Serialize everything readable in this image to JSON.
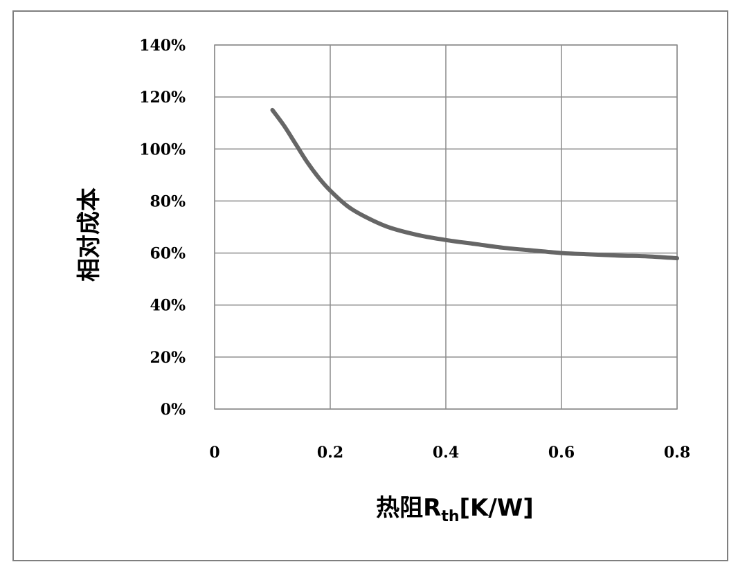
{
  "chart_data": {
    "type": "line",
    "title": "",
    "xlabel": {
      "prefix": "热阻R",
      "subscript": "th",
      "suffix": "[K/W]"
    },
    "ylabel": "相对成本",
    "xlim": [
      0,
      0.8
    ],
    "ylim": [
      0,
      1.4
    ],
    "x_ticks": [
      0,
      0.2,
      0.4,
      0.6,
      0.8
    ],
    "x_tick_labels": [
      "0",
      "0.2",
      "0.4",
      "0.6",
      "0.8"
    ],
    "y_ticks": [
      0,
      0.2,
      0.4,
      0.6,
      0.8,
      1.0,
      1.2,
      1.4
    ],
    "y_tick_labels": [
      "0%",
      "20%",
      "40%",
      "60%",
      "80%",
      "100%",
      "120%",
      "140%"
    ],
    "grid": true,
    "legend": "none",
    "series": [
      {
        "color": "#666666",
        "x": [
          0.1,
          0.12,
          0.14,
          0.16,
          0.18,
          0.2,
          0.23,
          0.26,
          0.3,
          0.35,
          0.4,
          0.45,
          0.5,
          0.55,
          0.6,
          0.65,
          0.7,
          0.75,
          0.8
        ],
        "y": [
          1.15,
          1.09,
          1.02,
          0.95,
          0.89,
          0.84,
          0.78,
          0.74,
          0.7,
          0.67,
          0.65,
          0.635,
          0.62,
          0.61,
          0.6,
          0.595,
          0.59,
          0.587,
          0.58
        ]
      }
    ]
  }
}
